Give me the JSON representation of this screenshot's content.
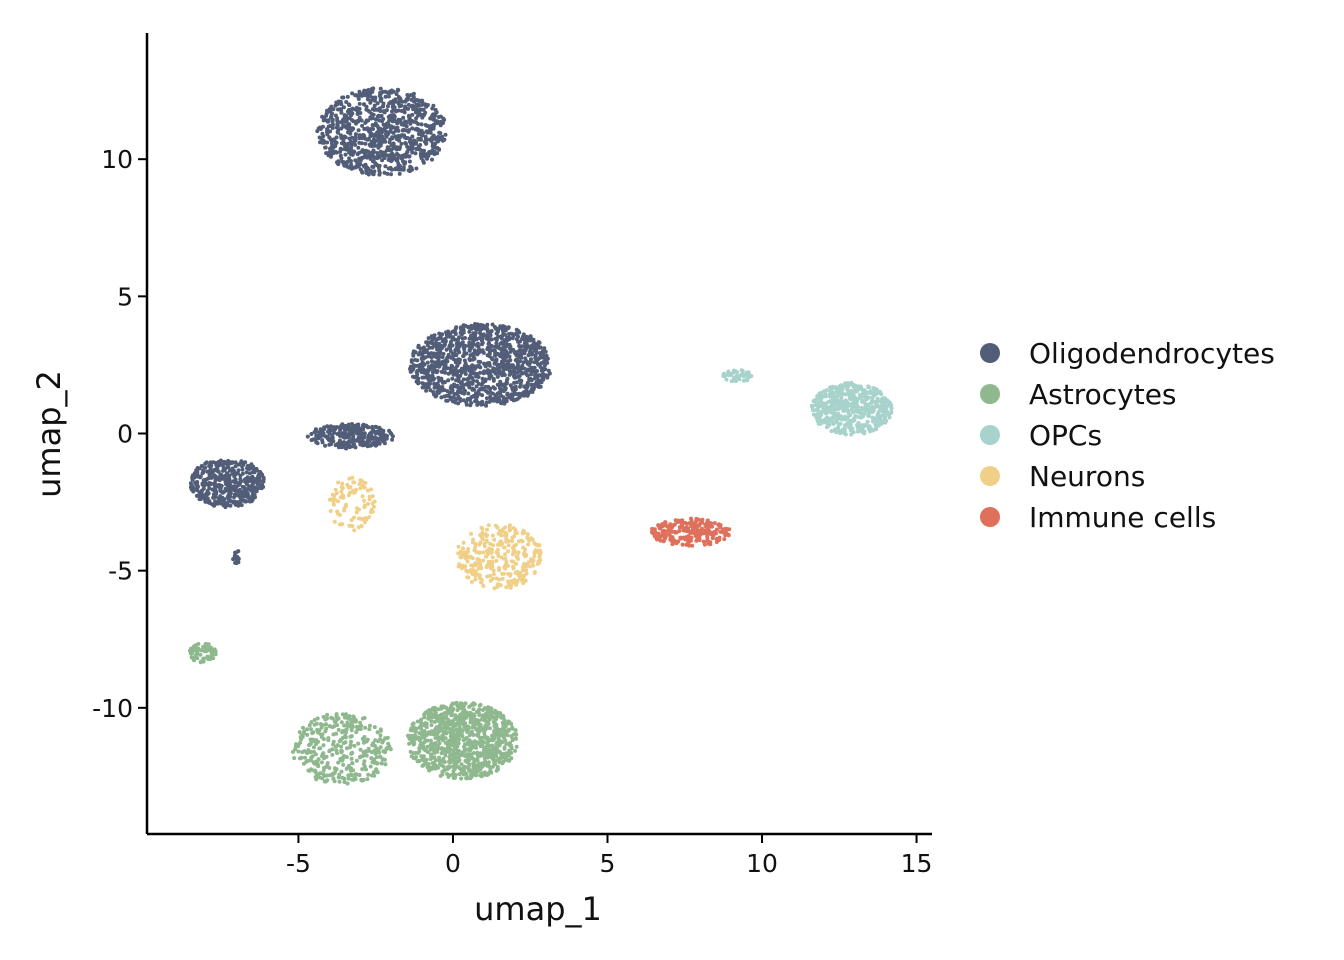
{
  "chart_data": {
    "type": "scatter",
    "xlabel": "umap_1",
    "ylabel": "umap_2",
    "xlim": [
      -9.9,
      15.5
    ],
    "ylim": [
      -14.6,
      14.6
    ],
    "x_ticks": [
      -5,
      0,
      5,
      10,
      15
    ],
    "x_tick_labels": [
      "-5",
      "0",
      "5",
      "10",
      "15"
    ],
    "y_ticks": [
      -10,
      -5,
      0,
      5,
      10
    ],
    "y_tick_labels": [
      "-10",
      "-5",
      "0",
      "5",
      "10"
    ],
    "grid": false,
    "legend_position": "right",
    "series": [
      {
        "name": "Oligodendrocytes",
        "color": "#525d78",
        "clusters": [
          {
            "cx": -2.3,
            "cy": 11.0,
            "rx": 2.1,
            "ry": 1.6,
            "n": 900
          },
          {
            "cx": 0.9,
            "cy": 2.5,
            "rx": 2.3,
            "ry": 1.5,
            "n": 1100
          },
          {
            "cx": -3.3,
            "cy": -0.1,
            "rx": 1.4,
            "ry": 0.45,
            "n": 260
          },
          {
            "cx": -7.3,
            "cy": -1.8,
            "rx": 1.2,
            "ry": 0.9,
            "n": 420
          },
          {
            "cx": -7.0,
            "cy": -4.5,
            "rx": 0.12,
            "ry": 0.3,
            "n": 14
          }
        ]
      },
      {
        "name": "Astrocytes",
        "color": "#8fb88e",
        "clusters": [
          {
            "cx": 0.3,
            "cy": -11.2,
            "rx": 1.8,
            "ry": 1.4,
            "n": 900
          },
          {
            "cx": -3.6,
            "cy": -11.5,
            "rx": 1.6,
            "ry": 1.3,
            "n": 350
          },
          {
            "cx": -8.1,
            "cy": -8.0,
            "rx": 0.45,
            "ry": 0.35,
            "n": 70
          }
        ]
      },
      {
        "name": "OPCs",
        "color": "#a8d2cc",
        "clusters": [
          {
            "cx": 12.9,
            "cy": 0.9,
            "rx": 1.3,
            "ry": 0.95,
            "n": 520
          },
          {
            "cx": 9.2,
            "cy": 2.1,
            "rx": 0.5,
            "ry": 0.22,
            "n": 45
          }
        ]
      },
      {
        "name": "Neurons",
        "color": "#f0d088",
        "clusters": [
          {
            "cx": 1.5,
            "cy": -4.5,
            "rx": 1.4,
            "ry": 1.2,
            "n": 300
          },
          {
            "cx": -3.3,
            "cy": -2.6,
            "rx": 0.8,
            "ry": 1.0,
            "n": 90
          }
        ]
      },
      {
        "name": "Immune cells",
        "color": "#de705c",
        "clusters": [
          {
            "cx": 7.7,
            "cy": -3.6,
            "rx": 1.3,
            "ry": 0.5,
            "n": 230
          }
        ]
      }
    ]
  }
}
